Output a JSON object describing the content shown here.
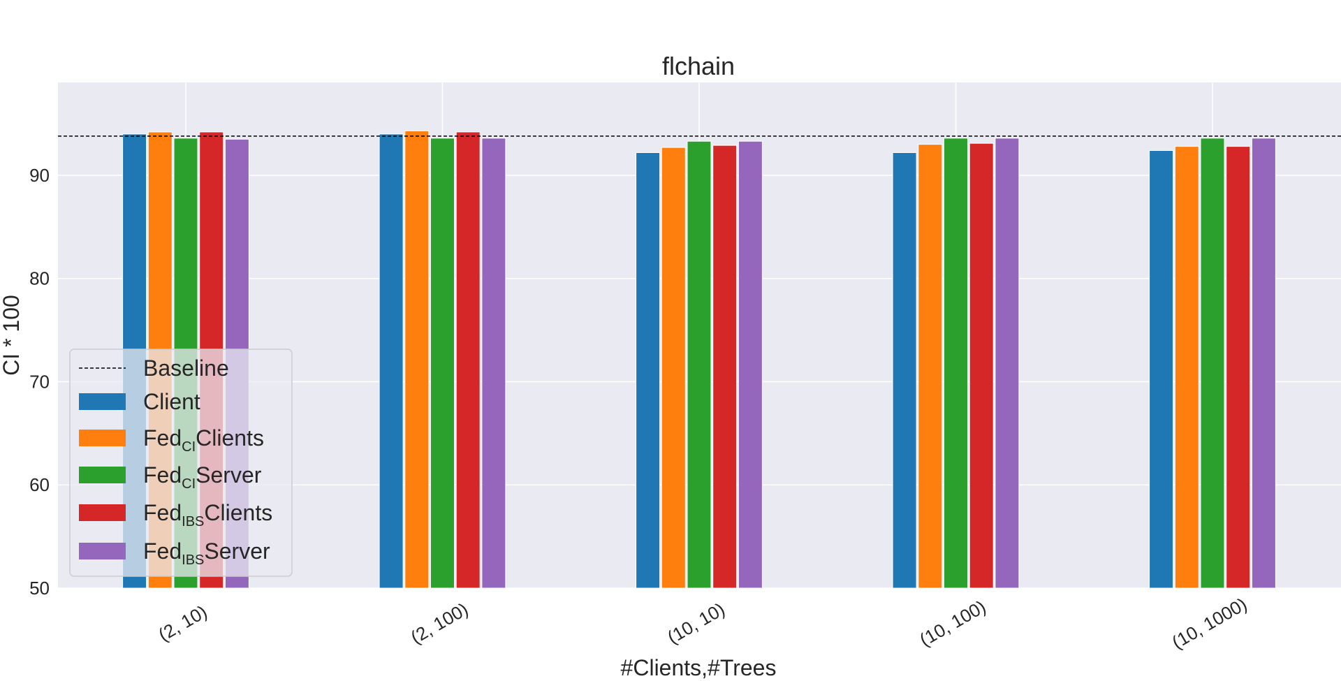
{
  "chart_data": {
    "type": "bar",
    "title": "flchain",
    "xlabel": "#Clients,#Trees",
    "ylabel": "CI * 100",
    "categories": [
      "(2, 10)",
      "(2, 100)",
      "(10, 10)",
      "(10, 100)",
      "(10, 1000)"
    ],
    "ylim": [
      50,
      99
    ],
    "yticks": [
      50,
      60,
      70,
      80,
      90
    ],
    "grid": true,
    "legend_position": "lower-left",
    "baseline": {
      "name": "Baseline",
      "value": 93.8,
      "color": "#000000",
      "style": "dashed"
    },
    "series": [
      {
        "name": "Client",
        "name_parts": [
          "Client",
          "",
          ""
        ],
        "color": "#1f77b4",
        "values": [
          94.0,
          94.0,
          92.2,
          92.2,
          92.4
        ]
      },
      {
        "name": "FedCIClients",
        "name_parts": [
          "Fed",
          "CI",
          "Clients"
        ],
        "color": "#ff7f0e",
        "values": [
          94.2,
          94.3,
          92.7,
          93.0,
          92.8
        ]
      },
      {
        "name": "FedCIServer",
        "name_parts": [
          "Fed",
          "CI",
          "Server"
        ],
        "color": "#2ca02c",
        "values": [
          93.6,
          93.6,
          93.3,
          93.6,
          93.6
        ]
      },
      {
        "name": "FedIBSClients",
        "name_parts": [
          "Fed",
          "IBS",
          "Clients"
        ],
        "color": "#d62728",
        "values": [
          94.2,
          94.2,
          92.9,
          93.1,
          92.8
        ]
      },
      {
        "name": "FedIBSServer",
        "name_parts": [
          "Fed",
          "IBS",
          "Server"
        ],
        "color": "#9467bd",
        "values": [
          93.5,
          93.6,
          93.3,
          93.6,
          93.6
        ]
      }
    ]
  }
}
